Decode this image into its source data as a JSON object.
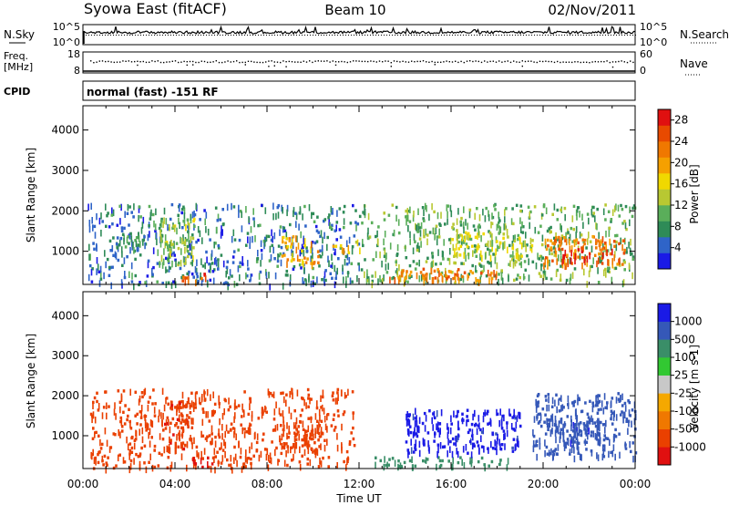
{
  "header": {
    "station": "Syowa East (fitACF)",
    "beam": "Beam 10",
    "date": "02/Nov/2011"
  },
  "nsky_panel": {
    "left_label": "N.Sky",
    "right_label": "N.Search",
    "left_ticks": [
      "10^5",
      "10^0"
    ],
    "right_ticks": [
      "10^5",
      "10^0"
    ]
  },
  "freq_panel": {
    "left_label_line1": "Freq.",
    "left_label_line2": "[MHz]",
    "right_label": "Nave",
    "left_ticks": [
      "18",
      "8"
    ],
    "right_ticks": [
      "60",
      "0"
    ]
  },
  "cpid_panel": {
    "label": "CPID",
    "text": "normal (fast) -151 RF"
  },
  "colors": {
    "power_scale": [
      "#1a1ae6",
      "#2f64c8",
      "#2e8b57",
      "#5aae5a",
      "#b8c832",
      "#f0d800",
      "#f5a000",
      "#f07800",
      "#e84a00",
      "#e01010"
    ],
    "velocity_scale": [
      "#e01010",
      "#ea4000",
      "#f07800",
      "#f5a800",
      "#c8c8c8",
      "#32c832",
      "#3a8e68",
      "#3558b8",
      "#1a1ae6"
    ]
  },
  "chart_data": [
    {
      "type": "heatmap",
      "name": "power",
      "xlabel": "Time UT",
      "ylabel": "Slant Range [km]",
      "xlim": [
        0,
        24
      ],
      "ylim": [
        180,
        4600
      ],
      "yticks": [
        "1000",
        "2000",
        "3000",
        "4000"
      ],
      "colorbar_label": "Power [dB]",
      "colorbar_ticks": [
        "4",
        "8",
        "12",
        "16",
        "20",
        "24",
        "28"
      ],
      "colorbar_range": [
        0,
        30
      ],
      "regions": [
        {
          "t0": 0.2,
          "t1": 12.0,
          "r0": 200,
          "r1": 2200,
          "level": 6
        },
        {
          "t0": 1.5,
          "t1": 2.8,
          "r0": 1100,
          "r1": 1500,
          "level": 8
        },
        {
          "t0": 3.3,
          "t1": 4.8,
          "r0": 700,
          "r1": 1900,
          "level": 12
        },
        {
          "t0": 4.2,
          "t1": 5.8,
          "r0": 280,
          "r1": 480,
          "level": 26
        },
        {
          "t0": 8.6,
          "t1": 10.2,
          "r0": 700,
          "r1": 1400,
          "level": 20
        },
        {
          "t0": 10.8,
          "t1": 12.2,
          "r0": 1000,
          "r1": 1300,
          "level": 18
        },
        {
          "t0": 12.0,
          "t1": 24.0,
          "r0": 250,
          "r1": 2200,
          "level": 10
        },
        {
          "t0": 13.0,
          "t1": 18.0,
          "r0": 300,
          "r1": 600,
          "level": 22
        },
        {
          "t0": 16.0,
          "t1": 19.5,
          "r0": 900,
          "r1": 1500,
          "level": 14
        },
        {
          "t0": 20.0,
          "t1": 23.5,
          "r0": 700,
          "r1": 1400,
          "level": 22
        },
        {
          "t0": 20.8,
          "t1": 23.0,
          "r0": 800,
          "r1": 1100,
          "level": 27
        }
      ]
    },
    {
      "type": "heatmap",
      "name": "velocity",
      "xlabel": "Time UT",
      "ylabel": "Slant Range [km]",
      "xlim": [
        0,
        24
      ],
      "ylim": [
        180,
        4600
      ],
      "yticks": [
        "1000",
        "2000",
        "3000",
        "4000"
      ],
      "xticks": [
        "00:00",
        "04:00",
        "08:00",
        "12:00",
        "16:00",
        "20:00",
        "00:00"
      ],
      "colorbar_label": "Velocity [m s-1]",
      "colorbar_ticks": [
        "1000",
        "500",
        "100",
        "25",
        "-25",
        "-100",
        "-500",
        "-1000"
      ],
      "colorbar_range": [
        -1000,
        1000
      ],
      "regions": [
        {
          "t0": 0.3,
          "t1": 11.8,
          "r0": 200,
          "r1": 2200,
          "level": -200
        },
        {
          "t0": 3.5,
          "t1": 4.8,
          "r0": 700,
          "r1": 1900,
          "level": -400
        },
        {
          "t0": 4.5,
          "t1": 5.8,
          "r0": 250,
          "r1": 500,
          "level": -600
        },
        {
          "t0": 8.6,
          "t1": 10.4,
          "r0": 700,
          "r1": 1500,
          "level": -150
        },
        {
          "t0": 12.5,
          "t1": 18.5,
          "r0": 250,
          "r1": 500,
          "level": 50
        },
        {
          "t0": 14.0,
          "t1": 19.0,
          "r0": 600,
          "r1": 1700,
          "level": 700
        },
        {
          "t0": 19.5,
          "t1": 24.0,
          "r0": 500,
          "r1": 2100,
          "level": 200
        },
        {
          "t0": 20.5,
          "t1": 22.5,
          "r0": 800,
          "r1": 1400,
          "level": 400
        }
      ]
    }
  ]
}
